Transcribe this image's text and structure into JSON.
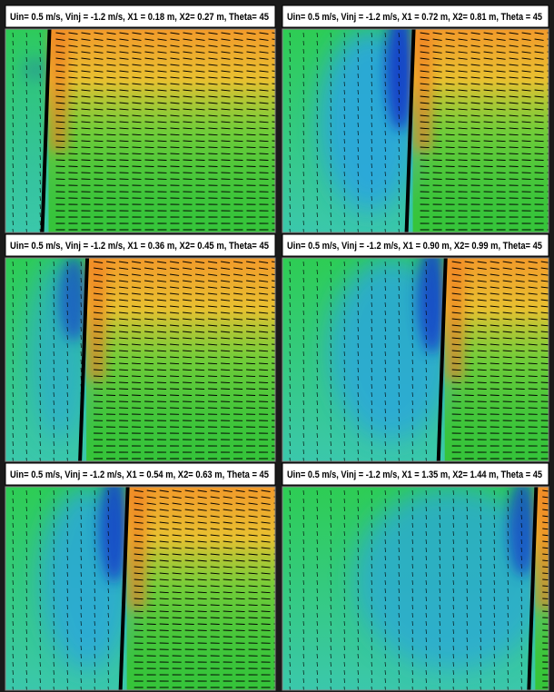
{
  "panels": [
    {
      "title": "Uin= 0.5 m/s, Vinj = -1.2 m/s, X1 = 0.18 m, X2= 0.27 m, Theta= 45"
    },
    {
      "title": "Uin= 0.5 m/s, Vinj = -1.2 m/s, X1 = 0.72 m, X2= 0.81 m, Theta = 45"
    },
    {
      "title": "Uin= 0.5 m/s, Vinj = -1.2 m/s, X1 = 0.36 m, X2= 0.45 m, Theta= 45"
    },
    {
      "title": "Uin= 0.5 m/s, Vinj = -1.2 m/s, X1 = 0.90 m, X2= 0.99 m, Theta= 45"
    },
    {
      "title": "Uin= 0.5 m/s, Vinj = -1.2 m/s, X1 = 0.54 m, X2= 0.63 m, Theta = 45"
    },
    {
      "title": "Uin= 0.5 m/s, Vinj = -1.2 m/s, X1 = 1.35 m, X2= 1.44 m, Theta = 45"
    }
  ]
}
